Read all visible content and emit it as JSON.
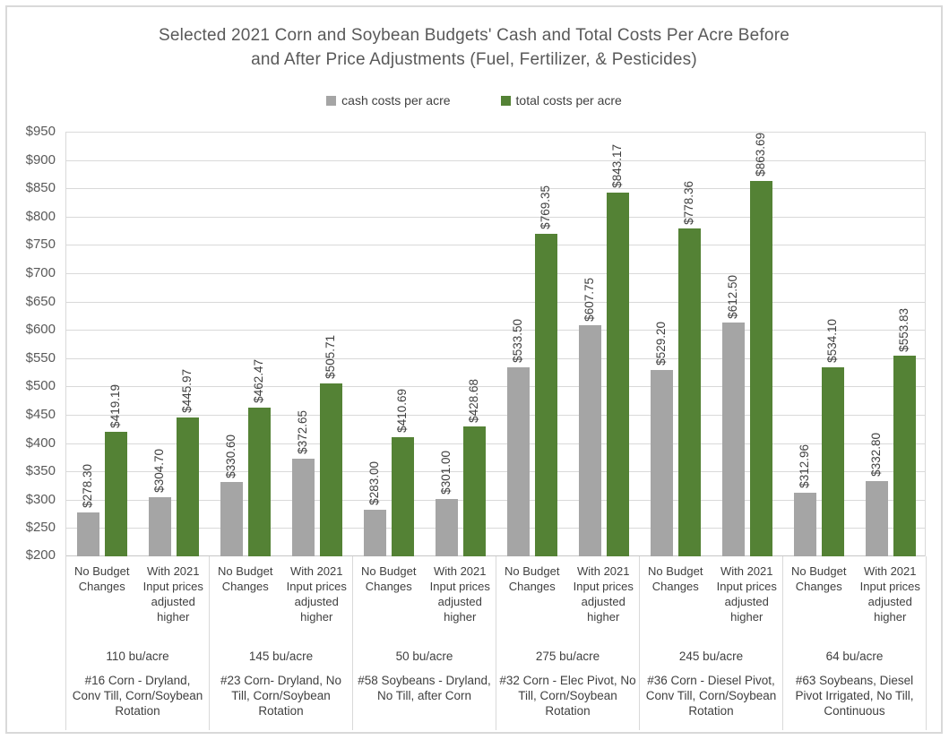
{
  "chart": {
    "title_lines": [
      "Selected 2021 Corn and Soybean Budgets' Cash and Total Costs Per Acre Before",
      "and After Price Adjustments (Fuel, Fertilizer, & Pesticides)"
    ],
    "legend": [
      {
        "label": "cash costs per acre",
        "color": "#a5a5a5"
      },
      {
        "label": "total costs per acre",
        "color": "#548235"
      }
    ]
  },
  "chart_data": {
    "type": "bar",
    "title": "Selected 2021 Corn and Soybean Budgets' Cash and Total Costs Per Acre Before and After Price Adjustments (Fuel, Fertilizer, & Pesticides)",
    "ylim": [
      200,
      950
    ],
    "ytick_step": 50,
    "ytick_prefix": "$",
    "grid": true,
    "legend_position": "top",
    "data_labels": "rotated, $ with 2 decimals",
    "series": [
      {
        "name": "cash costs per acre",
        "color": "#a5a5a5"
      },
      {
        "name": "total costs per acre",
        "color": "#548235"
      }
    ],
    "groups": [
      {
        "yield_label": "110 bu/acre",
        "budget_label": "#16 Corn - Dryland, Conv Till, Corn/Soybean Rotation",
        "clusters": [
          {
            "label": "No Budget Changes",
            "values": [
              278.3,
              419.19
            ]
          },
          {
            "label": "With 2021 Input prices adjusted higher",
            "values": [
              304.7,
              445.97
            ]
          }
        ]
      },
      {
        "yield_label": "145 bu/acre",
        "budget_label": "#23 Corn- Dryland, No Till, Corn/Soybean Rotation",
        "clusters": [
          {
            "label": "No Budget Changes",
            "values": [
              330.6,
              462.47
            ]
          },
          {
            "label": "With 2021 Input prices adjusted higher",
            "values": [
              372.65,
              505.71
            ]
          }
        ]
      },
      {
        "yield_label": "50 bu/acre",
        "budget_label": "#58 Soybeans - Dryland, No Till, after Corn",
        "clusters": [
          {
            "label": "No Budget Changes",
            "values": [
              283.0,
              410.69
            ]
          },
          {
            "label": "With 2021 Input prices adjusted higher",
            "values": [
              301.0,
              428.68
            ]
          }
        ]
      },
      {
        "yield_label": "275 bu/acre",
        "budget_label": "#32 Corn - Elec Pivot, No Till, Corn/Soybean Rotation",
        "clusters": [
          {
            "label": "No Budget Changes",
            "values": [
              533.5,
              769.35
            ]
          },
          {
            "label": "With 2021 Input prices adjusted higher",
            "values": [
              607.75,
              843.17
            ]
          }
        ]
      },
      {
        "yield_label": "245 bu/acre",
        "budget_label": "#36 Corn - Diesel Pivot, Conv Till, Corn/Soybean Rotation",
        "clusters": [
          {
            "label": "No Budget Changes",
            "values": [
              529.2,
              778.36
            ]
          },
          {
            "label": "With 2021 Input prices adjusted higher",
            "values": [
              612.5,
              863.69
            ]
          }
        ]
      },
      {
        "yield_label": "64 bu/acre",
        "budget_label": "#63 Soybeans, Diesel Pivot Irrigated, No Till, Continuous",
        "clusters": [
          {
            "label": "No Budget Changes",
            "values": [
              312.96,
              534.1
            ]
          },
          {
            "label": "With 2021 Input prices adjusted higher",
            "values": [
              332.8,
              553.83
            ]
          }
        ]
      }
    ]
  }
}
